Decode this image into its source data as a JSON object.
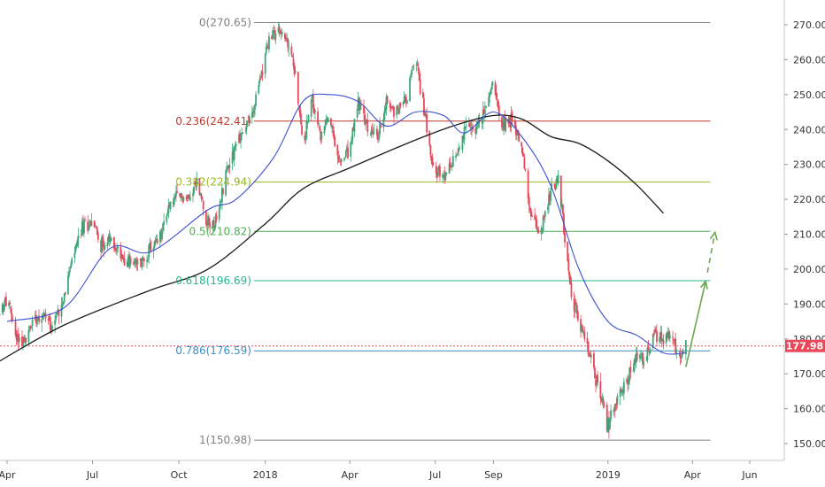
{
  "chart_data": {
    "type": "candlestick",
    "y_axis": {
      "side": "right",
      "ylim": [
        144,
        278
      ],
      "ticks": [
        150,
        160,
        170,
        180,
        190,
        200,
        210,
        220,
        230,
        240,
        250,
        260,
        270
      ],
      "tick_labels": [
        "150.00",
        "160.00",
        "170.00",
        "180.00",
        "190.00",
        "200.00",
        "210.00",
        "220.00",
        "230.00",
        "240.00",
        "250.00",
        "260.00",
        "270.00"
      ]
    },
    "x_axis": {
      "range": [
        "2017-03-20",
        "2019-07-15"
      ],
      "ticks": [
        {
          "date": "2017-04-01",
          "label": "Apr"
        },
        {
          "date": "2017-07-01",
          "label": "Jul"
        },
        {
          "date": "2017-10-01",
          "label": "Oct"
        },
        {
          "date": "2018-01-01",
          "label": "2018"
        },
        {
          "date": "2018-04-01",
          "label": "Apr"
        },
        {
          "date": "2018-07-01",
          "label": "Jul"
        },
        {
          "date": "2018-09-01",
          "label": "Sep"
        },
        {
          "date": "2019-01-01",
          "label": "2019"
        },
        {
          "date": "2019-04-01",
          "label": "Apr"
        },
        {
          "date": "2019-06-01",
          "label": "Jun"
        }
      ]
    },
    "last_price": {
      "value": 177.98,
      "label": "177.98",
      "color": "#e8485a"
    },
    "fib_levels": [
      {
        "ratio": 0,
        "value": 270.65,
        "label": "0(270.65)",
        "color": "#808080"
      },
      {
        "ratio": 0.236,
        "value": 242.41,
        "label": "0.236(242.41)",
        "color": "#c0392b"
      },
      {
        "ratio": 0.382,
        "value": 224.94,
        "label": "0.382(224.94)",
        "color": "#9ab91f"
      },
      {
        "ratio": 0.5,
        "value": 210.82,
        "label": "0.5(210.82)",
        "color": "#4caf50"
      },
      {
        "ratio": 0.618,
        "value": 196.69,
        "label": "0.618(196.69)",
        "color": "#26b68e"
      },
      {
        "ratio": 0.786,
        "value": 176.59,
        "label": "0.786(176.59)",
        "color": "#3d8fc4"
      },
      {
        "ratio": 1,
        "value": 150.98,
        "label": "1(150.98)",
        "color": "#808080"
      }
    ],
    "price_path": [
      [
        "2017-03-20",
        184
      ],
      [
        "2017-04-01",
        192
      ],
      [
        "2017-04-10",
        181
      ],
      [
        "2017-04-20",
        179
      ],
      [
        "2017-05-01",
        187
      ],
      [
        "2017-05-10",
        187
      ],
      [
        "2017-05-20",
        184
      ],
      [
        "2017-06-01",
        193
      ],
      [
        "2017-06-10",
        203
      ],
      [
        "2017-06-20",
        212
      ],
      [
        "2017-07-01",
        214
      ],
      [
        "2017-07-10",
        207
      ],
      [
        "2017-07-20",
        208
      ],
      [
        "2017-08-01",
        204
      ],
      [
        "2017-08-10",
        202
      ],
      [
        "2017-08-20",
        201
      ],
      [
        "2017-09-01",
        206
      ],
      [
        "2017-09-10",
        208
      ],
      [
        "2017-09-20",
        218
      ],
      [
        "2017-10-01",
        221
      ],
      [
        "2017-10-10",
        220
      ],
      [
        "2017-10-20",
        225
      ],
      [
        "2017-11-01",
        213
      ],
      [
        "2017-11-10",
        213
      ],
      [
        "2017-11-20",
        228
      ],
      [
        "2017-12-01",
        236
      ],
      [
        "2017-12-10",
        240
      ],
      [
        "2017-12-20",
        246
      ],
      [
        "2018-01-01",
        262
      ],
      [
        "2018-01-10",
        268
      ],
      [
        "2018-01-20",
        268
      ],
      [
        "2018-02-01",
        258
      ],
      [
        "2018-02-10",
        236
      ],
      [
        "2018-02-20",
        248
      ],
      [
        "2018-03-01",
        238
      ],
      [
        "2018-03-10",
        244
      ],
      [
        "2018-03-20",
        230
      ],
      [
        "2018-04-01",
        234
      ],
      [
        "2018-04-10",
        248
      ],
      [
        "2018-04-20",
        240
      ],
      [
        "2018-05-01",
        238
      ],
      [
        "2018-05-10",
        248
      ],
      [
        "2018-05-20",
        245
      ],
      [
        "2018-06-01",
        250
      ],
      [
        "2018-06-10",
        261
      ],
      [
        "2018-06-20",
        244
      ],
      [
        "2018-07-01",
        228
      ],
      [
        "2018-07-10",
        226
      ],
      [
        "2018-07-20",
        230
      ],
      [
        "2018-08-01",
        240
      ],
      [
        "2018-08-10",
        240
      ],
      [
        "2018-08-20",
        243
      ],
      [
        "2018-09-01",
        254
      ],
      [
        "2018-09-10",
        242
      ],
      [
        "2018-09-20",
        243
      ],
      [
        "2018-10-01",
        236
      ],
      [
        "2018-10-10",
        216
      ],
      [
        "2018-10-20",
        210
      ],
      [
        "2018-11-01",
        222
      ],
      [
        "2018-11-10",
        226
      ],
      [
        "2018-11-20",
        198
      ],
      [
        "2018-12-01",
        184
      ],
      [
        "2018-12-05",
        182
      ],
      [
        "2018-12-20",
        168
      ],
      [
        "2019-01-01",
        155
      ],
      [
        "2019-01-10",
        162
      ],
      [
        "2019-01-20",
        168
      ],
      [
        "2019-02-01",
        174
      ],
      [
        "2019-02-10",
        174
      ],
      [
        "2019-02-20",
        182
      ],
      [
        "2019-03-01",
        180
      ],
      [
        "2019-03-10",
        180
      ],
      [
        "2019-03-20",
        175
      ],
      [
        "2019-03-25",
        178
      ]
    ],
    "ma_short_path": [
      [
        "2017-04-01",
        185
      ],
      [
        "2017-06-01",
        189
      ],
      [
        "2017-07-20",
        206
      ],
      [
        "2017-09-01",
        205
      ],
      [
        "2017-11-01",
        217
      ],
      [
        "2017-12-01",
        220
      ],
      [
        "2018-01-10",
        232
      ],
      [
        "2018-02-10",
        248
      ],
      [
        "2018-03-10",
        250
      ],
      [
        "2018-04-10",
        248
      ],
      [
        "2018-05-10",
        241
      ],
      [
        "2018-06-10",
        245
      ],
      [
        "2018-07-10",
        244
      ],
      [
        "2018-08-01",
        239
      ],
      [
        "2018-09-01",
        245
      ],
      [
        "2018-10-01",
        238
      ],
      [
        "2018-11-01",
        224
      ],
      [
        "2018-12-01",
        200
      ],
      [
        "2019-01-01",
        185
      ],
      [
        "2019-02-01",
        181
      ],
      [
        "2019-03-01",
        176
      ],
      [
        "2019-03-25",
        176
      ]
    ],
    "ma_long_path": [
      [
        "2017-03-20",
        173
      ],
      [
        "2017-06-01",
        184
      ],
      [
        "2017-09-01",
        194
      ],
      [
        "2017-11-01",
        200
      ],
      [
        "2018-01-01",
        213
      ],
      [
        "2018-02-10",
        223
      ],
      [
        "2018-04-01",
        229
      ],
      [
        "2018-06-01",
        236
      ],
      [
        "2018-07-20",
        241
      ],
      [
        "2018-09-01",
        244
      ],
      [
        "2018-10-01",
        243
      ],
      [
        "2018-11-01",
        238
      ],
      [
        "2018-12-01",
        236
      ],
      [
        "2019-01-01",
        231
      ],
      [
        "2019-02-01",
        224
      ],
      [
        "2019-03-01",
        216
      ]
    ],
    "projection": {
      "solid_start": [
        "2019-03-25",
        172
      ],
      "solid_end": [
        "2019-04-15",
        196.5
      ],
      "dashed_end": [
        "2019-04-25",
        210.5
      ],
      "color": "#6aa84f"
    }
  }
}
